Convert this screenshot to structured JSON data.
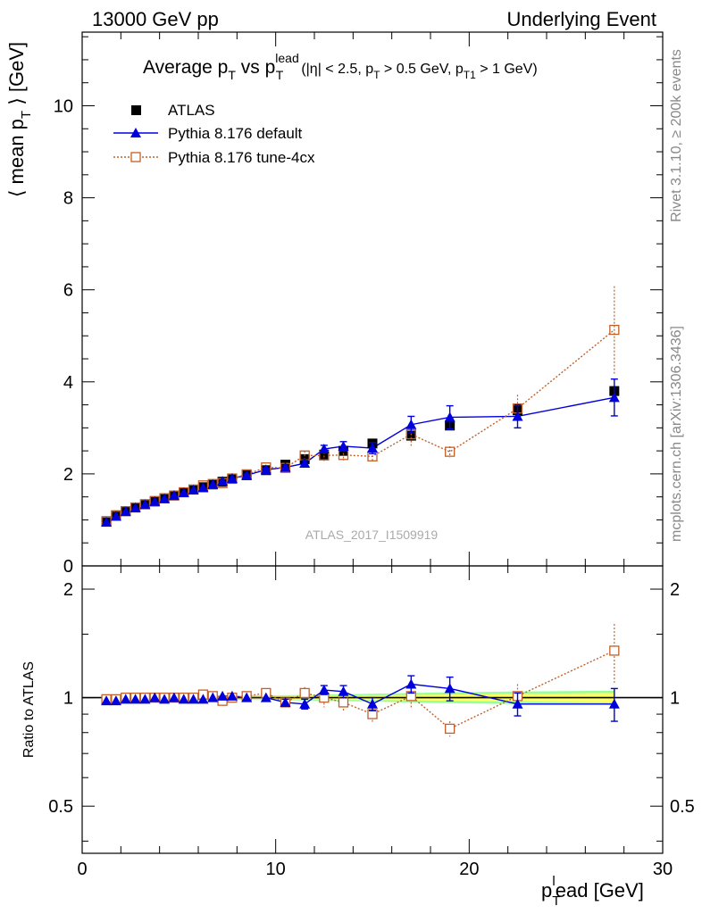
{
  "header": {
    "left": "13000 GeV pp",
    "right": "Underlying Event"
  },
  "side_labels": {
    "rivet": "Rivet 3.1.10, ≥ 200k events",
    "mcplots": "mcplots.cern.ch [arXiv:1306.3436]"
  },
  "colors": {
    "atlas": "#000000",
    "pythia_default": "#0000dd",
    "pythia_tune": "#c0602a",
    "band_inner": "#ffff66",
    "band_outer": "#99ff99"
  },
  "chart_data": [
    {
      "type": "scatter",
      "title": "Average p_T vs p_T^lead (|η| < 2.5, p_T > 0.5 GeV, p_T1 > 1 GeV)",
      "title_parts": {
        "main_a": "Average p",
        "sub_a": "T",
        "main_b": " vs p",
        "sup_b": "lead",
        "sub_b": "T",
        "cond": "(|η| < 2.5, p",
        "cond_sub1": "T",
        "cond_mid": " > 0.5 GeV, p",
        "cond_sub2": "T1",
        "cond_end": " > 1 GeV)"
      },
      "ylabel": "⟨ mean p_T ⟩ [GeV]",
      "ylabel_parts": {
        "main": "⟨ mean p",
        "sub": "T",
        "end": " ⟩ [GeV]"
      },
      "watermark": "ATLAS_2017_I1509919",
      "xlim": [
        0,
        30
      ],
      "ylim": [
        0,
        11.6
      ],
      "yticks": [
        0,
        2,
        4,
        6,
        8,
        10
      ],
      "ytick_labels": [
        "0",
        "2",
        "4",
        "6",
        "8",
        "10"
      ],
      "legend_position": "top-left",
      "series": [
        {
          "name": "ATLAS",
          "marker": "filled-square",
          "x": [
            1.25,
            1.75,
            2.25,
            2.75,
            3.25,
            3.75,
            4.25,
            4.75,
            5.25,
            5.75,
            6.25,
            6.75,
            7.25,
            7.75,
            8.5,
            9.5,
            10.5,
            11.5,
            12.5,
            13.5,
            15,
            17,
            19,
            22.5,
            27.5
          ],
          "y": [
            0.97,
            1.1,
            1.19,
            1.27,
            1.34,
            1.4,
            1.47,
            1.53,
            1.6,
            1.66,
            1.71,
            1.77,
            1.83,
            1.89,
            1.97,
            2.08,
            2.2,
            2.32,
            2.42,
            2.5,
            2.66,
            2.83,
            3.05,
            3.38,
            3.8
          ]
        },
        {
          "name": "Pythia 8.176 default",
          "marker": "filled-triangle",
          "x": [
            1.25,
            1.75,
            2.25,
            2.75,
            3.25,
            3.75,
            4.25,
            4.75,
            5.25,
            5.75,
            6.25,
            6.75,
            7.25,
            7.75,
            8.5,
            9.5,
            10.5,
            11.5,
            12.5,
            13.5,
            15,
            17,
            19,
            22.5,
            27.5
          ],
          "y": [
            0.95,
            1.08,
            1.18,
            1.26,
            1.33,
            1.4,
            1.46,
            1.53,
            1.59,
            1.65,
            1.7,
            1.77,
            1.84,
            1.9,
            1.97,
            2.09,
            2.14,
            2.23,
            2.54,
            2.6,
            2.56,
            3.07,
            3.23,
            3.25,
            3.66
          ],
          "err": [
            0.01,
            0.01,
            0.01,
            0.01,
            0.01,
            0.01,
            0.01,
            0.01,
            0.01,
            0.01,
            0.01,
            0.01,
            0.01,
            0.01,
            0.02,
            0.03,
            0.04,
            0.06,
            0.08,
            0.1,
            0.12,
            0.18,
            0.25,
            0.25,
            0.4
          ]
        },
        {
          "name": "Pythia 8.176 tune-4cx",
          "marker": "open-square",
          "x": [
            1.25,
            1.75,
            2.25,
            2.75,
            3.25,
            3.75,
            4.25,
            4.75,
            5.25,
            5.75,
            6.25,
            6.75,
            7.25,
            7.75,
            8.5,
            9.5,
            10.5,
            11.5,
            12.5,
            13.5,
            15,
            17,
            19,
            22.5,
            27.5
          ],
          "y": [
            0.96,
            1.09,
            1.19,
            1.27,
            1.34,
            1.41,
            1.47,
            1.53,
            1.6,
            1.66,
            1.75,
            1.78,
            1.8,
            1.9,
            1.99,
            2.14,
            2.13,
            2.4,
            2.4,
            2.41,
            2.38,
            2.86,
            2.48,
            3.42,
            5.13
          ],
          "err": [
            0.01,
            0.01,
            0.01,
            0.01,
            0.01,
            0.01,
            0.01,
            0.01,
            0.01,
            0.01,
            0.02,
            0.02,
            0.02,
            0.03,
            0.03,
            0.05,
            0.06,
            0.1,
            0.15,
            0.12,
            0.1,
            0.25,
            0.12,
            0.3,
            0.95
          ]
        }
      ]
    },
    {
      "type": "scatter",
      "ylabel": "Ratio to ATLAS",
      "xlabel": "p_T^lead [GeV]",
      "xlabel_parts": {
        "main_a": "p",
        "sub": "T",
        "sup": "l",
        "main_b": "ead [GeV]"
      },
      "xlim": [
        0,
        30
      ],
      "ylim": [
        0.37,
        2.32
      ],
      "yscale": "log",
      "yticks": [
        0.5,
        1,
        2
      ],
      "ytick_labels": [
        "0.5",
        "1",
        "2"
      ],
      "xticks": [
        0,
        10,
        20,
        30
      ],
      "xtick_labels": [
        "0",
        "10",
        "20",
        "30"
      ],
      "series": [
        {
          "name": "Pythia 8.176 default",
          "x": [
            1.25,
            1.75,
            2.25,
            2.75,
            3.25,
            3.75,
            4.25,
            4.75,
            5.25,
            5.75,
            6.25,
            6.75,
            7.25,
            7.75,
            8.5,
            9.5,
            10.5,
            11.5,
            12.5,
            13.5,
            15,
            17,
            19,
            22.5,
            27.5
          ],
          "y": [
            0.98,
            0.98,
            0.99,
            0.99,
            0.99,
            1.0,
            0.99,
            1.0,
            0.99,
            0.99,
            0.99,
            1.0,
            1.01,
            1.01,
            1.0,
            1.0,
            0.97,
            0.96,
            1.05,
            1.04,
            0.96,
            1.09,
            1.06,
            0.96,
            0.96
          ],
          "err": [
            0.01,
            0.01,
            0.01,
            0.01,
            0.01,
            0.01,
            0.01,
            0.01,
            0.01,
            0.01,
            0.01,
            0.01,
            0.01,
            0.01,
            0.01,
            0.01,
            0.02,
            0.03,
            0.03,
            0.04,
            0.04,
            0.06,
            0.08,
            0.07,
            0.1
          ]
        },
        {
          "name": "Pythia 8.176 tune-4cx",
          "x": [
            1.25,
            1.75,
            2.25,
            2.75,
            3.25,
            3.75,
            4.25,
            4.75,
            5.25,
            5.75,
            6.25,
            6.75,
            7.25,
            7.75,
            8.5,
            9.5,
            10.5,
            11.5,
            12.5,
            13.5,
            15,
            17,
            19,
            22.5,
            27.5
          ],
          "y": [
            0.99,
            0.99,
            1.0,
            1.0,
            1.0,
            1.0,
            1.0,
            1.0,
            1.0,
            1.0,
            1.02,
            1.01,
            0.98,
            1.0,
            1.01,
            1.03,
            0.97,
            1.03,
            1.0,
            0.97,
            0.9,
            1.01,
            0.82,
            1.01,
            1.35
          ],
          "err": [
            0.01,
            0.01,
            0.01,
            0.01,
            0.01,
            0.01,
            0.01,
            0.01,
            0.01,
            0.01,
            0.01,
            0.01,
            0.01,
            0.01,
            0.01,
            0.02,
            0.02,
            0.04,
            0.06,
            0.05,
            0.05,
            0.08,
            0.04,
            0.08,
            0.25
          ]
        }
      ],
      "band_inner_halfwidth": [
        0.008,
        0.008,
        0.008,
        0.008,
        0.008,
        0.008,
        0.008,
        0.008,
        0.008,
        0.008,
        0.008,
        0.008,
        0.008,
        0.008,
        0.01,
        0.01,
        0.01,
        0.012,
        0.012,
        0.014,
        0.015,
        0.018,
        0.02,
        0.025,
        0.03
      ],
      "band_outer_halfwidth": [
        0.012,
        0.012,
        0.012,
        0.012,
        0.012,
        0.012,
        0.012,
        0.012,
        0.012,
        0.012,
        0.012,
        0.012,
        0.012,
        0.012,
        0.014,
        0.015,
        0.016,
        0.018,
        0.02,
        0.022,
        0.025,
        0.03,
        0.035,
        0.04,
        0.045
      ]
    }
  ]
}
